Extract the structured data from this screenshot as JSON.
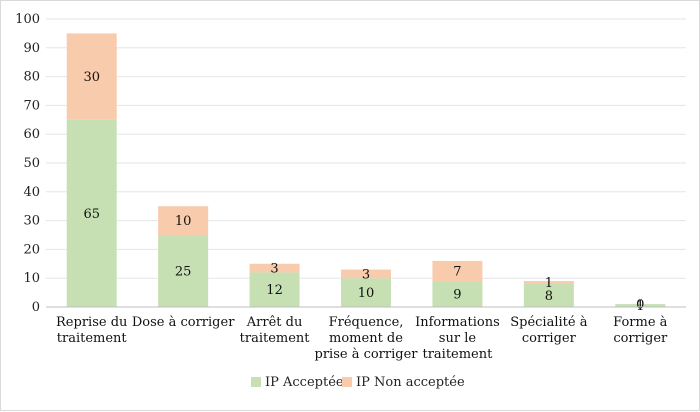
{
  "chart_data": {
    "type": "bar",
    "stacked": true,
    "categories": [
      [
        "Reprise du",
        "traitement"
      ],
      [
        "Dose à corriger"
      ],
      [
        "Arrêt du",
        "traitement"
      ],
      [
        "Fréquence,",
        "moment de",
        "prise à corriger"
      ],
      [
        "Informations",
        "sur le",
        "traitement"
      ],
      [
        "Spécialité à",
        "corriger"
      ],
      [
        "Forme à",
        "corriger"
      ]
    ],
    "series": [
      {
        "name": "IP Acceptée",
        "color": "#c6e0b4",
        "values": [
          65,
          25,
          12,
          10,
          9,
          8,
          1
        ]
      },
      {
        "name": "IP Non acceptée",
        "color": "#f8cbad",
        "values": [
          30,
          10,
          3,
          3,
          7,
          1,
          0
        ]
      }
    ],
    "ylim": [
      0,
      100
    ],
    "yticks": [
      0,
      10,
      20,
      30,
      40,
      50,
      60,
      70,
      80,
      90,
      100
    ],
    "grid": true,
    "legend": "bottom",
    "title": "",
    "xlabel": "",
    "ylabel": ""
  }
}
